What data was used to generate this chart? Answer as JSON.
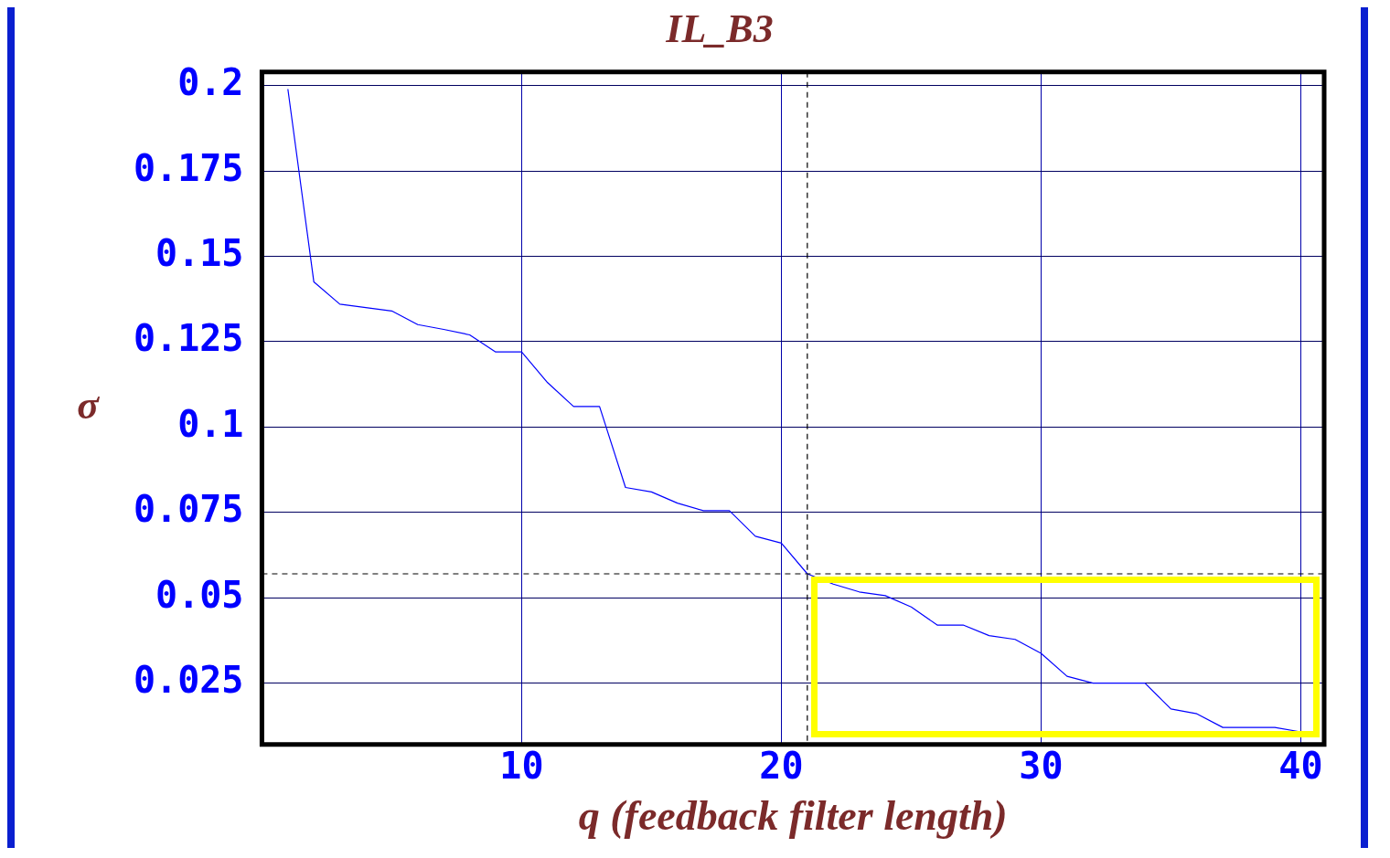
{
  "chart_data": {
    "type": "line",
    "title": "IL_B3",
    "xlabel": "q (feedback filter length)",
    "ylabel": "σ",
    "x": [
      1,
      2,
      3,
      4,
      5,
      6,
      7,
      8,
      9,
      10,
      11,
      12,
      13,
      14,
      15,
      16,
      17,
      18,
      19,
      20,
      21,
      22,
      23,
      24,
      25,
      26,
      27,
      28,
      29,
      30,
      31,
      32,
      33,
      34,
      35,
      36,
      37,
      38,
      39,
      40
    ],
    "series": [
      {
        "color": "#0000ff",
        "values": [
          0.199,
          0.1425,
          0.136,
          0.135,
          0.134,
          0.13,
          0.1286,
          0.127,
          0.122,
          0.122,
          0.113,
          0.106,
          0.106,
          0.0823,
          0.081,
          0.0777,
          0.0755,
          0.0755,
          0.068,
          0.066,
          0.057,
          0.054,
          0.0517,
          0.0506,
          0.0473,
          0.042,
          0.042,
          0.0389,
          0.0378,
          0.0337,
          0.027,
          0.025,
          0.025,
          0.025,
          0.0174,
          0.016,
          0.012,
          0.012,
          0.012,
          0.0107
        ]
      }
    ],
    "xlim": [
      0,
      40.9
    ],
    "xticks": [
      10,
      20,
      30,
      40
    ],
    "ylim": [
      0.007,
      0.204
    ],
    "yticks": [
      0.025,
      0.05,
      0.075,
      0.1,
      0.125,
      0.15,
      0.175,
      0.2
    ],
    "ref_lines": [
      {
        "axis": "x",
        "value": 21,
        "color": "#000000",
        "line_style": "dashed"
      },
      {
        "axis": "y",
        "value": 0.057,
        "color": "#000000",
        "line_style": "dashed"
      }
    ],
    "grid": true,
    "legend": false,
    "marker": "none",
    "line_style": "solid"
  }
}
